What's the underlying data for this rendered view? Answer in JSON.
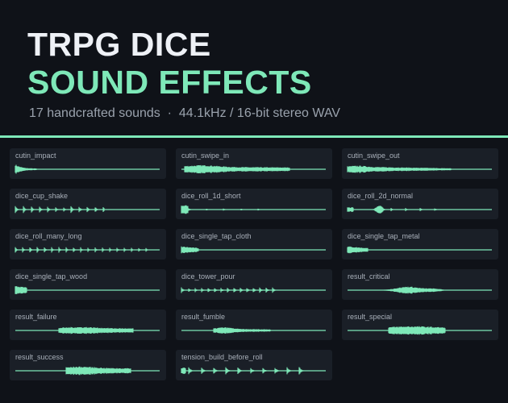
{
  "header": {
    "title_line1": "TRPG DICE",
    "title_line2": "SOUND EFFECTS",
    "subtitle": "17 handcrafted sounds  ·  44.1kHz / 16-bit stereo WAV"
  },
  "sounds": [
    "cutin_impact",
    "cutin_swipe_in",
    "cutin_swipe_out",
    "dice_cup_shake",
    "dice_roll_1d_short",
    "dice_roll_2d_normal",
    "dice_roll_many_long",
    "dice_single_tap_cloth",
    "dice_single_tap_metal",
    "dice_single_tap_wood",
    "dice_tower_pour",
    "result_critical",
    "result_failure",
    "result_fumble",
    "result_special",
    "result_success",
    "tension_build_before_roll"
  ]
}
